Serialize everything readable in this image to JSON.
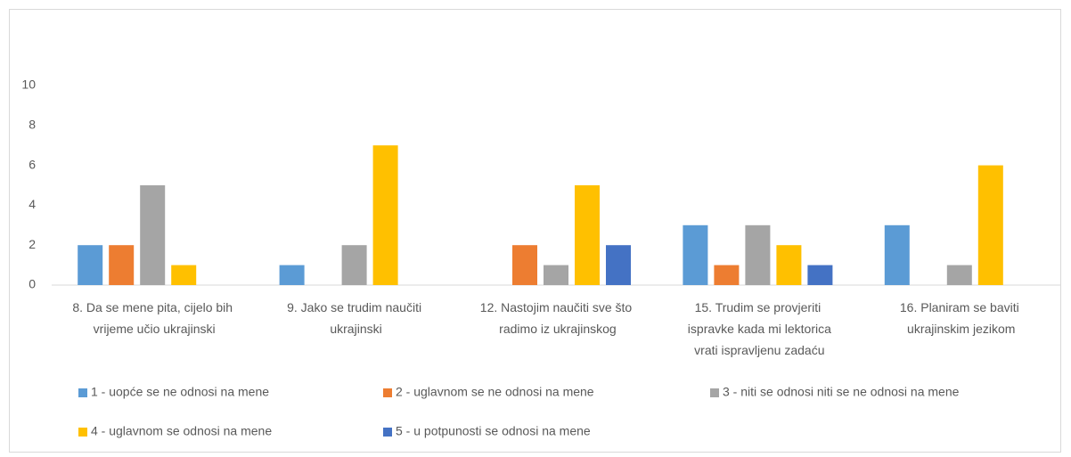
{
  "chart_data": {
    "type": "bar",
    "categories": [
      "8. Da se mene pita, cijelo bih vrijeme učio ukrajinski",
      "9. Jako se trudim naučiti ukrajinski",
      "12. Nastojim naučiti sve što radimo iz ukrajinskog",
      "15. Trudim se provjeriti ispravke kada mi lektorica vrati ispravljenu zadaću",
      "16. Planiram se baviti ukrajinskim jezikom"
    ],
    "series": [
      {
        "name": "1 - uopće se ne odnosi na mene",
        "color": "#5b9bd5",
        "values": [
          2,
          1,
          0,
          3,
          3
        ]
      },
      {
        "name": "2 - uglavnom se ne odnosi na mene",
        "color": "#ed7d31",
        "values": [
          2,
          0,
          2,
          1,
          0
        ]
      },
      {
        "name": "3 - niti se odnosi niti se ne odnosi na mene",
        "color": "#a5a5a5",
        "values": [
          5,
          2,
          1,
          3,
          1
        ]
      },
      {
        "name": "4 - uglavnom se odnosi na mene",
        "color": "#ffc000",
        "values": [
          1,
          7,
          5,
          2,
          6
        ]
      },
      {
        "name": "5 - u potpunosti se odnosi na mene",
        "color": "#4472c4",
        "values": [
          0,
          0,
          2,
          1,
          0
        ]
      }
    ],
    "ylim": [
      0,
      10
    ],
    "yticks": [
      0,
      2,
      4,
      6,
      8,
      10
    ],
    "legend": "bottom"
  }
}
